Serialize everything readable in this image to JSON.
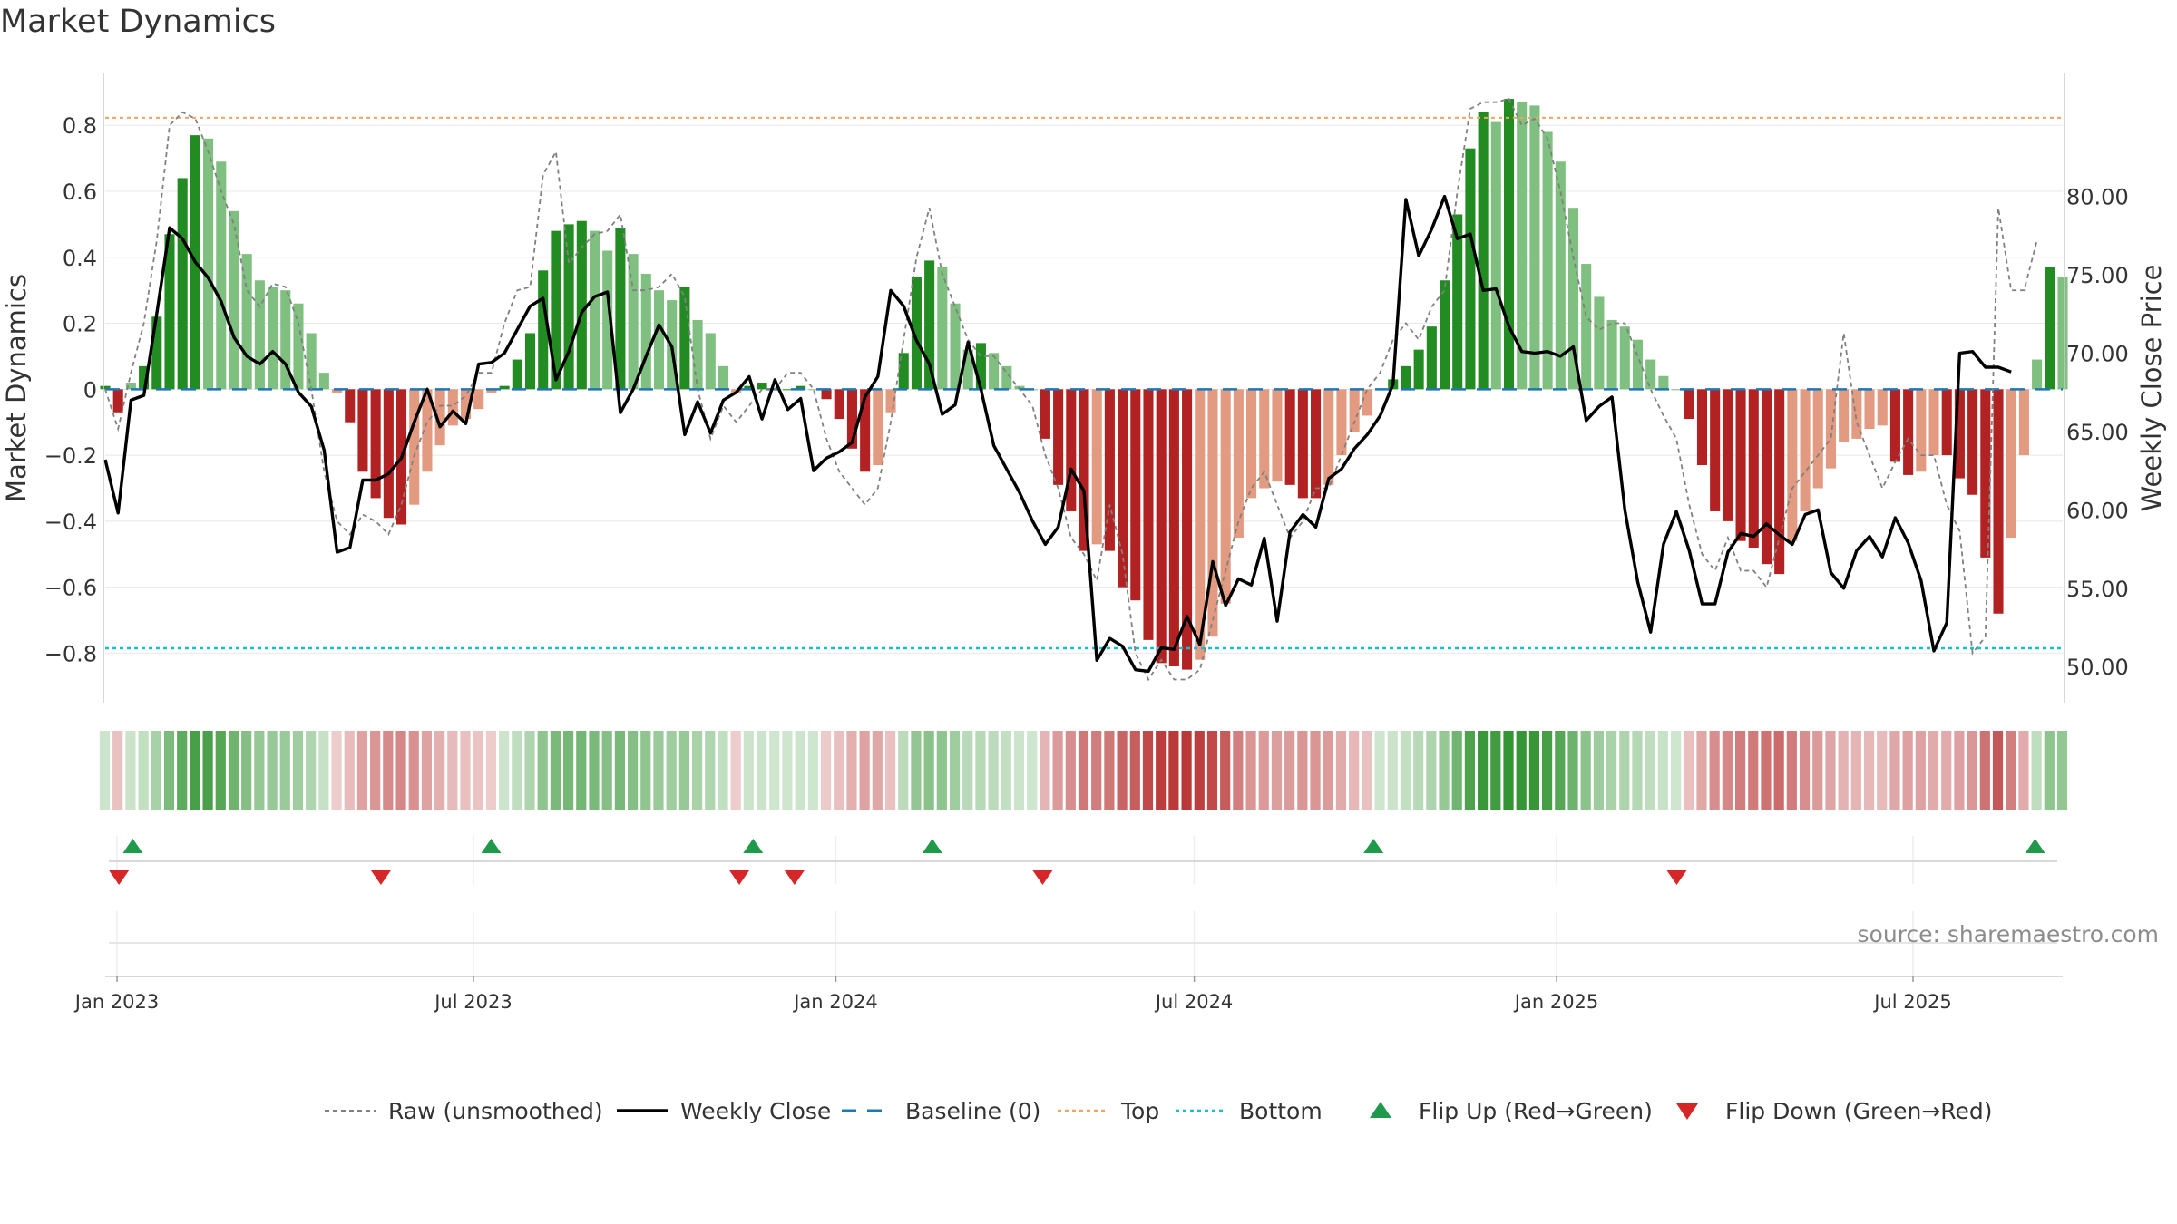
{
  "chart_data": {
    "type": "bar",
    "title": "Market Dynamics",
    "ylabel_left": "Market Dynamics",
    "ylabel_right": "Weekly Close Price",
    "ylim_left": [
      -0.95,
      0.96
    ],
    "ylim_right": [
      47.7,
      87.9
    ],
    "yticks_left": [
      0.8,
      0.6,
      0.4,
      0.2,
      0,
      -0.2,
      -0.4,
      -0.6,
      -0.8
    ],
    "ytick_labels_left": [
      "0.8",
      "0.6",
      "0.4",
      "0.2",
      "0",
      "−0.2",
      "−0.4",
      "−0.6",
      "−0.8"
    ],
    "yticks_right": [
      80,
      75,
      70,
      65,
      60,
      55,
      50
    ],
    "ytick_labels_right": [
      "80.00",
      "75.00",
      "70.00",
      "65.00",
      "60.00",
      "55.00",
      "50.00"
    ],
    "x_start": "2022-12-26",
    "x_end": "2025-09-15",
    "x_tick_dates": [
      "2023-01-01",
      "2023-07-01",
      "2024-01-01",
      "2024-07-01",
      "2025-01-01",
      "2025-07-01"
    ],
    "x_tick_labels": [
      "Jan 2023",
      "Jul 2023",
      "Jan 2024",
      "Jul 2024",
      "Jan 2025",
      "Jul 2025"
    ],
    "top_level": 0.823,
    "bottom_level": -0.785,
    "baseline_level": 0,
    "grid": true,
    "dynamics": [
      0.01,
      -0.07,
      0.02,
      0.07,
      0.22,
      0.47,
      0.64,
      0.77,
      0.76,
      0.69,
      0.54,
      0.41,
      0.33,
      0.31,
      0.3,
      0.26,
      0.17,
      0.05,
      -0.01,
      -0.1,
      -0.25,
      -0.33,
      -0.39,
      -0.41,
      -0.35,
      -0.25,
      -0.17,
      -0.11,
      -0.09,
      -0.06,
      -0.01,
      0.01,
      0.09,
      0.17,
      0.36,
      0.48,
      0.5,
      0.51,
      0.48,
      0.42,
      0.49,
      0.41,
      0.35,
      0.3,
      0.27,
      0.31,
      0.21,
      0.17,
      0.07,
      -0.01,
      0.01,
      0.02,
      0.0,
      0.0,
      0.01,
      0.0,
      -0.03,
      -0.09,
      -0.18,
      -0.25,
      -0.23,
      -0.07,
      0.11,
      0.34,
      0.39,
      0.37,
      0.26,
      0.12,
      0.14,
      0.11,
      0.07,
      0.01,
      0.0,
      -0.15,
      -0.29,
      -0.37,
      -0.49,
      -0.47,
      -0.49,
      -0.6,
      -0.64,
      -0.76,
      -0.83,
      -0.84,
      -0.85,
      -0.82,
      -0.75,
      -0.65,
      -0.45,
      -0.33,
      -0.3,
      -0.28,
      -0.29,
      -0.33,
      -0.33,
      -0.29,
      -0.2,
      -0.13,
      -0.08,
      0.0,
      0.03,
      0.07,
      0.12,
      0.19,
      0.33,
      0.53,
      0.73,
      0.84,
      0.81,
      0.88,
      0.87,
      0.86,
      0.78,
      0.69,
      0.55,
      0.38,
      0.28,
      0.21,
      0.19,
      0.15,
      0.09,
      0.04,
      0.0,
      -0.09,
      -0.23,
      -0.37,
      -0.4,
      -0.46,
      -0.48,
      -0.53,
      -0.56,
      -0.46,
      -0.37,
      -0.3,
      -0.24,
      -0.16,
      -0.15,
      -0.12,
      -0.11,
      -0.22,
      -0.26,
      -0.25,
      -0.2,
      -0.2,
      -0.27,
      -0.32,
      -0.51,
      -0.68,
      -0.45,
      -0.2,
      0.09,
      0.37,
      0.34
    ],
    "raw_dynamics": [
      0.0,
      -0.12,
      0.05,
      0.2,
      0.45,
      0.8,
      0.84,
      0.82,
      0.72,
      0.6,
      0.5,
      0.3,
      0.25,
      0.32,
      0.31,
      0.2,
      0.0,
      -0.25,
      -0.4,
      -0.44,
      -0.38,
      -0.4,
      -0.44,
      -0.35,
      -0.2,
      -0.1,
      -0.05,
      -0.05,
      -0.02,
      0.05,
      0.05,
      0.2,
      0.3,
      0.31,
      0.65,
      0.72,
      0.38,
      0.43,
      0.47,
      0.48,
      0.53,
      0.3,
      0.3,
      0.31,
      0.35,
      0.28,
      0.0,
      -0.15,
      -0.05,
      -0.1,
      -0.05,
      0.0,
      0.0,
      0.05,
      0.05,
      0.0,
      -0.15,
      -0.25,
      -0.3,
      -0.35,
      -0.3,
      -0.1,
      0.15,
      0.4,
      0.55,
      0.35,
      0.25,
      0.15,
      0.1,
      0.1,
      0.05,
      0.0,
      -0.05,
      -0.2,
      -0.3,
      -0.45,
      -0.5,
      -0.58,
      -0.35,
      -0.5,
      -0.8,
      -0.88,
      -0.82,
      -0.88,
      -0.88,
      -0.85,
      -0.7,
      -0.55,
      -0.4,
      -0.3,
      -0.25,
      -0.35,
      -0.45,
      -0.4,
      -0.3,
      -0.3,
      -0.2,
      -0.1,
      0.0,
      0.05,
      0.15,
      0.2,
      0.15,
      0.25,
      0.3,
      0.6,
      0.85,
      0.87,
      0.87,
      0.88,
      0.8,
      0.82,
      0.76,
      0.6,
      0.4,
      0.22,
      0.18,
      0.2,
      0.2,
      0.1,
      0.0,
      -0.08,
      -0.15,
      -0.35,
      -0.5,
      -0.55,
      -0.45,
      -0.55,
      -0.55,
      -0.6,
      -0.45,
      -0.3,
      -0.25,
      -0.2,
      -0.15,
      0.17,
      -0.1,
      -0.2,
      -0.3,
      -0.22,
      -0.15,
      -0.2,
      -0.2,
      -0.35,
      -0.43,
      -0.8,
      -0.75,
      0.55,
      0.3,
      0.3,
      0.45
    ],
    "weekly_close": [
      63.2,
      59.8,
      67.0,
      67.3,
      72.5,
      78.0,
      77.3,
      75.8,
      74.8,
      73.3,
      71.0,
      69.8,
      69.3,
      70.1,
      69.3,
      67.5,
      66.6,
      63.8,
      57.3,
      57.6,
      61.9,
      61.9,
      62.3,
      63.3,
      65.6,
      67.7,
      65.3,
      66.3,
      65.5,
      69.3,
      69.4,
      70.0,
      71.5,
      73.0,
      73.5,
      68.3,
      70.1,
      72.6,
      73.6,
      73.9,
      66.2,
      67.7,
      69.8,
      71.8,
      70.4,
      64.8,
      66.9,
      64.9,
      67.0,
      67.5,
      68.5,
      65.8,
      68.3,
      66.4,
      67.1,
      62.5,
      63.3,
      63.7,
      64.3,
      67.2,
      68.5,
      74.0,
      73.0,
      70.8,
      69.3,
      66.1,
      66.7,
      70.7,
      67.7,
      64.1,
      62.6,
      61.1,
      59.3,
      57.8,
      58.9,
      62.6,
      61.2,
      50.4,
      51.8,
      51.3,
      49.8,
      49.7,
      51.2,
      51.1,
      53.2,
      51.4,
      56.7,
      53.9,
      55.6,
      55.2,
      58.2,
      52.9,
      58.6,
      59.7,
      58.9,
      62.0,
      62.6,
      63.9,
      64.8,
      66.0,
      68.0,
      79.8,
      76.2,
      77.9,
      80.0,
      77.3,
      77.6,
      74.0,
      74.1,
      71.7,
      70.1,
      70.0,
      70.1,
      69.8,
      70.4,
      65.7,
      66.6,
      67.2,
      60.0,
      55.4,
      52.2,
      57.8,
      59.9,
      57.4,
      54.0,
      54.0,
      57.3,
      58.5,
      58.3,
      59.1,
      58.4,
      57.8,
      59.7,
      60.0,
      56.0,
      55.0,
      57.4,
      58.3,
      57.0,
      59.5,
      57.9,
      55.5,
      51.0,
      52.8,
      70.0,
      70.1,
      69.1,
      69.1,
      68.8
    ],
    "flips_up": [
      "2023-01-09",
      "2023-07-10",
      "2023-11-20",
      "2024-02-19",
      "2024-09-30",
      "2025-09-01"
    ],
    "flips_down": [
      "2023-01-02",
      "2023-05-15",
      "2023-11-13",
      "2023-12-11",
      "2024-04-15",
      "2025-03-03"
    ],
    "legend": {
      "position": "bottom-center",
      "items": [
        {
          "label": "Raw (unsmoothed)",
          "style": "dashed-gray"
        },
        {
          "label": "Weekly Close",
          "style": "solid-black"
        },
        {
          "label": "Baseline (0)",
          "style": "dashed-blue"
        },
        {
          "label": "Top",
          "style": "dotted-orange"
        },
        {
          "label": "Bottom",
          "style": "dotted-cyan"
        },
        {
          "label": "Flip Up (Red→Green)",
          "style": "triangle-up-green"
        },
        {
          "label": "Flip Down (Green→Red)",
          "style": "triangle-down-red"
        }
      ]
    },
    "source": "source: sharemaestro.com"
  },
  "colors": {
    "bar_green_strong": "#228b22",
    "bar_green_light": "#7fbf7f",
    "bar_red_strong": "#b22222",
    "bar_red_light": "#e29a80",
    "raw_line": "#808080",
    "close_line": "#000000",
    "baseline": "#1f77b4",
    "top": "#f4a460",
    "bottom": "#17becf",
    "flip_up": "#1e9a4a",
    "flip_down": "#d62728",
    "grid": "#e8e8e8",
    "axis": "#cccccc"
  }
}
